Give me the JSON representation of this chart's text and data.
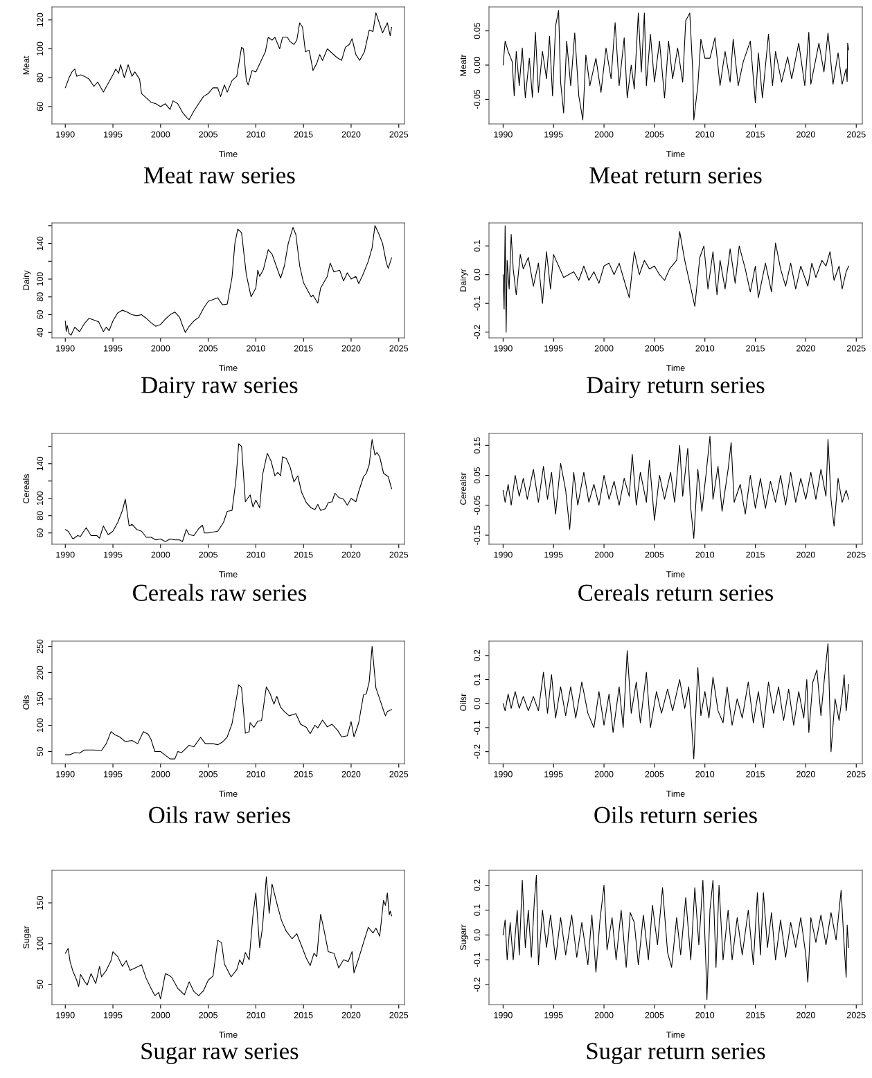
{
  "chart_data": [
    {
      "type": "line",
      "title": "Meat raw series",
      "xlabel": "Time",
      "ylabel": "Meat",
      "color": "#000000",
      "xlim": [
        1988.6,
        2025.6
      ],
      "ylim": [
        48,
        129
      ],
      "xticks": [
        1990,
        1995,
        2000,
        2005,
        2010,
        2015,
        2020,
        2025
      ],
      "yticks": [
        60,
        80,
        100,
        120
      ],
      "x": [
        1990,
        1990.4,
        1990.7,
        1991,
        1991.2,
        1991.6,
        1992,
        1992.5,
        1993,
        1993.4,
        1994,
        1994.5,
        1995,
        1995.3,
        1995.6,
        1995.8,
        1996.2,
        1996.6,
        1997,
        1997.3,
        1997.8,
        1998,
        1998.5,
        1999,
        1999.5,
        2000,
        2000.5,
        2001,
        2001.3,
        2001.8,
        2002.3,
        2002.8,
        2003,
        2003.5,
        2004,
        2004.5,
        2005,
        2005.5,
        2006,
        2006.3,
        2006.7,
        2007,
        2007.5,
        2008,
        2008.5,
        2008.7,
        2009,
        2009.2,
        2009.6,
        2010,
        2010.5,
        2011,
        2011.3,
        2011.7,
        2012,
        2012.5,
        2012.8,
        2013.3,
        2013.6,
        2014,
        2014.3,
        2014.6,
        2014.9,
        2015.2,
        2015.6,
        2016,
        2016.4,
        2016.7,
        2017,
        2017.5,
        2018,
        2018.5,
        2019,
        2019.4,
        2019.8,
        2020.1,
        2020.5,
        2020.9,
        2021.4,
        2021.9,
        2022.3,
        2022.6,
        2023,
        2023.3,
        2023.8,
        2024,
        2024.1,
        2024.25
      ],
      "values": [
        73,
        80,
        84,
        86,
        81,
        82,
        81,
        79,
        74,
        77,
        70,
        76,
        82,
        86,
        83,
        89,
        80,
        89,
        81,
        84,
        79,
        69,
        66,
        63,
        62,
        60,
        62,
        58,
        64,
        62,
        56,
        52,
        51,
        57,
        62,
        67,
        69,
        73,
        73,
        67,
        75,
        70,
        78,
        81,
        101,
        100,
        78,
        75,
        85,
        84,
        91,
        98,
        108,
        106,
        108,
        100,
        108,
        108,
        105,
        103,
        106,
        118,
        115,
        98,
        99,
        85,
        90,
        96,
        92,
        100,
        97,
        94,
        92,
        101,
        103,
        107,
        96,
        92,
        98,
        113,
        112,
        125,
        117,
        111,
        118,
        112,
        109,
        115
      ]
    },
    {
      "type": "line",
      "title": "Meat return series",
      "xlabel": "Time",
      "ylabel": "Meatr",
      "color": "#000000",
      "xlim": [
        1988.6,
        2025.6
      ],
      "ylim": [
        -0.086,
        0.085
      ],
      "xticks": [
        1990,
        1995,
        2000,
        2005,
        2010,
        2015,
        2020,
        2025
      ],
      "yticks": [
        {
          "value": -0.05,
          "label": "-0.05"
        },
        {
          "value": 0,
          "label": "0.00"
        },
        {
          "value": 0.05,
          "label": "0.05"
        }
      ],
      "x": [
        1990,
        1990.2,
        1990.5,
        1990.9,
        1991.1,
        1991.3,
        1991.6,
        1991.9,
        1992.2,
        1992.6,
        1992.9,
        1993.2,
        1993.5,
        1993.9,
        1994.3,
        1994.6,
        1994.9,
        1995.2,
        1995.5,
        1995.7,
        1996,
        1996.3,
        1996.7,
        1997.1,
        1997.5,
        1997.9,
        1998.2,
        1998.6,
        1999.2,
        1999.7,
        2000.2,
        2000.7,
        2001.1,
        2001.5,
        2002,
        2002.3,
        2002.7,
        2003,
        2003.4,
        2003.7,
        2004,
        2004.2,
        2004.6,
        2005,
        2005.5,
        2006,
        2006.4,
        2006.8,
        2007.3,
        2007.8,
        2008.1,
        2008.5,
        2008.8,
        2008.9,
        2009.3,
        2009.6,
        2010,
        2010.5,
        2011,
        2011.5,
        2012,
        2012.5,
        2012.8,
        2013.3,
        2013.8,
        2014.5,
        2015,
        2015.3,
        2015.7,
        2016.3,
        2016.7,
        2017,
        2017.6,
        2018.2,
        2018.6,
        2019.3,
        2019.9,
        2020.3,
        2020.5,
        2021.3,
        2021.8,
        2022.2,
        2022.7,
        2023.2,
        2023.6,
        2024,
        2024.1,
        2024.15,
        2024.25
      ],
      "values": [
        0,
        0.035,
        0.02,
        0.005,
        -0.045,
        0.02,
        -0.03,
        0.025,
        -0.048,
        0.01,
        -0.047,
        0.048,
        -0.04,
        0.02,
        -0.02,
        0.042,
        -0.045,
        0.057,
        0.08,
        -0.025,
        -0.07,
        0.035,
        -0.03,
        0.047,
        -0.045,
        -0.08,
        0.015,
        -0.03,
        0.01,
        -0.04,
        0.025,
        -0.02,
        0.062,
        -0.03,
        0.04,
        -0.048,
        0,
        -0.035,
        0.076,
        -0.01,
        0.076,
        -0.03,
        0.045,
        -0.025,
        0.035,
        -0.048,
        0.035,
        -0.02,
        0.025,
        -0.025,
        0.065,
        0.076,
        -0.01,
        -0.08,
        -0.03,
        0.038,
        0.01,
        0.01,
        0.04,
        -0.03,
        0.02,
        -0.025,
        0.038,
        -0.03,
        0.005,
        0.035,
        -0.055,
        0.018,
        -0.048,
        0.045,
        -0.03,
        0.02,
        -0.025,
        0.012,
        -0.02,
        0.032,
        -0.03,
        0.048,
        -0.028,
        0.032,
        -0.01,
        0.047,
        -0.028,
        0.018,
        -0.028,
        -0.005,
        -0.024,
        0.032,
        0.022
      ]
    },
    {
      "type": "line",
      "title": "Dairy raw series",
      "xlabel": "Time",
      "ylabel": "Dairy",
      "color": "#000000",
      "xlim": [
        1988.6,
        2025.6
      ],
      "ylim": [
        34,
        163
      ],
      "xticks": [
        1990,
        1995,
        2000,
        2005,
        2010,
        2015,
        2020,
        2025
      ],
      "yticks": [
        40,
        60,
        80,
        100,
        {
          "value": 120,
          "label": null
        },
        140,
        {
          "value": 160,
          "label": null
        }
      ],
      "x": [
        1990,
        1990.1,
        1990.2,
        1990.4,
        1990.6,
        1991,
        1991.5,
        1992,
        1992.5,
        1993,
        1993.5,
        1994,
        1994.3,
        1994.6,
        1995,
        1995.5,
        1996,
        1996.5,
        1997,
        1997.5,
        1998,
        1998.5,
        1999,
        1999.5,
        2000,
        2000.5,
        2001,
        2001.5,
        2002,
        2002.3,
        2002.6,
        2003,
        2003.5,
        2004,
        2004.5,
        2005,
        2005.5,
        2006,
        2006.5,
        2007,
        2007.5,
        2007.8,
        2008.1,
        2008.5,
        2009,
        2009.5,
        2010,
        2010.2,
        2010.4,
        2010.8,
        2011.3,
        2011.7,
        2012.3,
        2012.6,
        2013,
        2013.4,
        2013.9,
        2014.2,
        2014.6,
        2015,
        2015.4,
        2015.8,
        2016,
        2016.5,
        2016.8,
        2017.5,
        2017.8,
        2018.2,
        2018.8,
        2019.2,
        2019.6,
        2020,
        2020.5,
        2020.8,
        2021.2,
        2021.8,
        2022.2,
        2022.5,
        2022.9,
        2023.3,
        2023.7,
        2023.9,
        2024.25
      ],
      "values": [
        53,
        41,
        48,
        39,
        37,
        46,
        41,
        50,
        56,
        54,
        52,
        41,
        46,
        42,
        53,
        62,
        65,
        63,
        60,
        59,
        60,
        56,
        51,
        47,
        49,
        55,
        60,
        63,
        57,
        48,
        40,
        47,
        53,
        57,
        67,
        75,
        77,
        79,
        71,
        72,
        102,
        140,
        156,
        152,
        105,
        80,
        90,
        110,
        103,
        111,
        133,
        128,
        110,
        101,
        115,
        140,
        158,
        150,
        115,
        96,
        88,
        80,
        82,
        73,
        90,
        103,
        118,
        108,
        110,
        98,
        107,
        100,
        103,
        95,
        104,
        120,
        135,
        160,
        151,
        140,
        118,
        112,
        124
      ]
    },
    {
      "type": "line",
      "title": "Dairy return series",
      "xlabel": "Time",
      "ylabel": "Dairyr",
      "color": "#000000",
      "xlim": [
        1988.6,
        2025.6
      ],
      "ylim": [
        -0.22,
        0.18
      ],
      "xticks": [
        1990,
        1995,
        2000,
        2005,
        2010,
        2015,
        2020,
        2025
      ],
      "yticks": [
        -0.2,
        -0.1,
        {
          "value": 0,
          "label": "0.0"
        },
        0.1
      ],
      "x": [
        1990,
        1990.1,
        1990.2,
        1990.3,
        1990.4,
        1990.6,
        1990.8,
        1991,
        1991.3,
        1991.7,
        1992,
        1992.5,
        1993,
        1993.5,
        1993.9,
        1994.3,
        1994.7,
        1995,
        1995.5,
        1996,
        1997,
        1997.5,
        1998,
        1998.5,
        1999,
        1999.5,
        2000,
        2000.5,
        2001,
        2001.5,
        2002,
        2002.5,
        2003,
        2003.5,
        2004,
        2004.5,
        2005,
        2005.5,
        2006,
        2006.5,
        2007.2,
        2007.5,
        2008,
        2008.5,
        2009,
        2009.5,
        2009.9,
        2010.3,
        2010.8,
        2011.2,
        2011.5,
        2012,
        2012.5,
        2013,
        2013.4,
        2014,
        2014.5,
        2015,
        2015.3,
        2016,
        2016.6,
        2017,
        2017.5,
        2018,
        2018.5,
        2019,
        2019.5,
        2020.2,
        2020.6,
        2021,
        2021.6,
        2022,
        2022.4,
        2022.8,
        2023.3,
        2023.6,
        2024,
        2024.25
      ],
      "values": [
        0,
        -0.12,
        0.17,
        -0.2,
        0.05,
        -0.05,
        0.14,
        0.02,
        -0.07,
        0.07,
        0.02,
        0.06,
        -0.04,
        0.04,
        -0.1,
        0.08,
        -0.05,
        0.07,
        0.03,
        -0.01,
        0.01,
        -0.02,
        0.03,
        -0.02,
        0.01,
        -0.03,
        0.03,
        0.04,
        0,
        0.04,
        -0.02,
        -0.08,
        0.08,
        0,
        0.05,
        0.02,
        0.03,
        0,
        -0.02,
        0.02,
        0.05,
        0.15,
        0.05,
        -0.03,
        -0.11,
        0.06,
        0.1,
        -0.05,
        0.08,
        -0.07,
        0.05,
        -0.05,
        0.09,
        -0.03,
        0.1,
        0.02,
        -0.06,
        0.03,
        -0.08,
        0.04,
        -0.06,
        0.11,
        0.02,
        -0.04,
        0.04,
        -0.05,
        0.03,
        -0.04,
        0.04,
        -0.01,
        0.05,
        0.03,
        0.08,
        -0.02,
        0.03,
        -0.05,
        0.01,
        0.03
      ]
    },
    {
      "type": "line",
      "title": "Cereals raw series",
      "xlabel": "Time",
      "ylabel": "Cereals",
      "color": "#000000",
      "xlim": [
        1988.6,
        2025.6
      ],
      "ylim": [
        47,
        175
      ],
      "xticks": [
        1990,
        1995,
        2000,
        2005,
        2010,
        2015,
        2020,
        2025
      ],
      "yticks": [
        60,
        80,
        100,
        {
          "value": 120,
          "label": null
        },
        140,
        {
          "value": 160,
          "label": null
        }
      ],
      "x": [
        1990,
        1990.3,
        1990.8,
        1991.3,
        1991.6,
        1992,
        1992.2,
        1992.7,
        1993.3,
        1993.6,
        1994,
        1994.5,
        1995,
        1995.5,
        1996,
        1996.3,
        1996.7,
        1997,
        1997.5,
        1998,
        1998.5,
        1999,
        1999.5,
        2000,
        2000.5,
        2001,
        2001.5,
        2002,
        2002.3,
        2002.7,
        2003,
        2003.5,
        2004,
        2004.4,
        2004.6,
        2005,
        2005.5,
        2006,
        2006.6,
        2007,
        2007.5,
        2007.9,
        2008.2,
        2008.5,
        2008.9,
        2009.4,
        2009.7,
        2010,
        2010.4,
        2010.7,
        2011.2,
        2011.6,
        2012,
        2012.3,
        2012.6,
        2012.8,
        2013.2,
        2013.6,
        2014,
        2014.4,
        2014.8,
        2015.3,
        2015.8,
        2016.2,
        2016.5,
        2016.8,
        2017.3,
        2017.6,
        2018,
        2018.3,
        2018.7,
        2019.2,
        2019.6,
        2020,
        2020.5,
        2020.8,
        2021.3,
        2021.6,
        2021.9,
        2022.2,
        2022.5,
        2022.7,
        2023,
        2023.4,
        2023.9,
        2024.25
      ],
      "values": [
        64,
        62,
        53,
        57,
        56,
        63,
        66,
        57,
        57,
        54,
        68,
        58,
        62,
        72,
        86,
        99,
        68,
        70,
        64,
        62,
        55,
        55,
        52,
        53,
        50,
        53,
        52,
        52,
        50,
        64,
        58,
        57,
        65,
        69,
        60,
        60,
        61,
        62,
        72,
        85,
        86,
        120,
        163,
        160,
        96,
        104,
        90,
        98,
        89,
        127,
        152,
        143,
        126,
        130,
        126,
        148,
        146,
        136,
        119,
        126,
        107,
        95,
        89,
        87,
        93,
        86,
        88,
        95,
        96,
        106,
        101,
        99,
        92,
        100,
        96,
        108,
        125,
        129,
        139,
        168,
        150,
        153,
        148,
        129,
        125,
        111
      ]
    },
    {
      "type": "line",
      "title": "Cereals return series",
      "xlabel": "Time",
      "ylabel": "Cerealsr",
      "color": "#000000",
      "xlim": [
        1988.6,
        2025.6
      ],
      "ylim": [
        -0.18,
        0.19
      ],
      "xticks": [
        1990,
        1995,
        2000,
        2005,
        2010,
        2015,
        2020,
        2025
      ],
      "yticks": [
        -0.15,
        -0.05,
        0.05,
        0.15
      ],
      "x": [
        1990,
        1990.2,
        1990.5,
        1990.8,
        1991.2,
        1991.6,
        1992,
        1992.4,
        1993,
        1993.5,
        1994,
        1994.4,
        1994.8,
        1995.2,
        1995.7,
        1996.2,
        1996.6,
        1997,
        1997.4,
        1998,
        1998.5,
        1999,
        1999.5,
        2000,
        2000.5,
        2001,
        2001.5,
        2002,
        2002.5,
        2002.8,
        2003.2,
        2003.6,
        2004.2,
        2004.5,
        2005,
        2005.5,
        2006,
        2006.6,
        2007,
        2007.5,
        2007.8,
        2008.3,
        2008.6,
        2008.9,
        2009.3,
        2009.7,
        2010.1,
        2010.5,
        2010.8,
        2011.3,
        2011.7,
        2012.3,
        2012.6,
        2012.9,
        2013.5,
        2014,
        2014.5,
        2015,
        2015.5,
        2016,
        2016.5,
        2017,
        2017.5,
        2018,
        2018.5,
        2019,
        2019.5,
        2020,
        2020.5,
        2021,
        2021.5,
        2022,
        2022.2,
        2022.5,
        2022.8,
        2023.2,
        2023.6,
        2024,
        2024.25
      ],
      "values": [
        0,
        -0.04,
        0.02,
        -0.05,
        0.05,
        -0.02,
        0.04,
        -0.03,
        0.07,
        -0.04,
        0.08,
        -0.03,
        0.06,
        -0.08,
        0.09,
        0,
        -0.13,
        0.06,
        -0.05,
        0.06,
        -0.04,
        0.02,
        -0.05,
        0.05,
        -0.03,
        0.03,
        -0.05,
        0.04,
        -0.02,
        0.12,
        -0.05,
        0.06,
        -0.04,
        0.1,
        -0.1,
        0.05,
        -0.03,
        0.06,
        -0.04,
        0.15,
        -0.02,
        0.14,
        -0.06,
        -0.16,
        0.07,
        -0.07,
        0.05,
        0.18,
        -0.03,
        0.08,
        -0.07,
        0.07,
        0.16,
        -0.04,
        0.02,
        -0.08,
        0.05,
        -0.06,
        0.04,
        -0.06,
        0.03,
        -0.04,
        0.05,
        -0.05,
        0.06,
        -0.04,
        0.04,
        -0.03,
        0.06,
        -0.03,
        0.07,
        -0.02,
        0.17,
        -0.03,
        -0.12,
        0.04,
        -0.04,
        0,
        -0.03
      ]
    },
    {
      "type": "line",
      "title": "Oils raw series",
      "xlabel": "Time",
      "ylabel": "Oils",
      "color": "#000000",
      "xlim": [
        1988.6,
        2025.6
      ],
      "ylim": [
        27,
        260
      ],
      "xticks": [
        1990,
        1995,
        2000,
        2005,
        2010,
        2015,
        2020,
        2025
      ],
      "yticks": [
        50,
        100,
        150,
        200,
        250
      ],
      "x": [
        1990,
        1990.5,
        1991,
        1991.5,
        1992,
        1993,
        1993.8,
        1994.3,
        1994.8,
        1995.2,
        1995.7,
        1996.3,
        1997,
        1997.6,
        1998.2,
        1998.7,
        1999,
        1999.4,
        2000,
        2000.5,
        2001,
        2001.5,
        2001.8,
        2002.2,
        2003,
        2003.5,
        2004.2,
        2004.7,
        2005.5,
        2006,
        2006.5,
        2007,
        2007.5,
        2008,
        2008.2,
        2008.5,
        2008.9,
        2009.3,
        2009.4,
        2009.8,
        2010.2,
        2010.6,
        2011.1,
        2011.5,
        2011.9,
        2012.2,
        2012.6,
        2013,
        2013.5,
        2014.2,
        2014.7,
        2015.3,
        2015.7,
        2016.2,
        2016.5,
        2017,
        2017.5,
        2018,
        2018.6,
        2019,
        2019.6,
        2020,
        2020.3,
        2020.8,
        2021.3,
        2021.6,
        2021.9,
        2022.2,
        2022.6,
        2023,
        2023.4,
        2023.6,
        2023.8,
        2024.25
      ],
      "values": [
        44,
        44,
        48,
        47,
        53,
        53,
        52,
        65,
        88,
        82,
        78,
        69,
        71,
        65,
        88,
        83,
        73,
        50,
        50,
        43,
        36,
        36,
        50,
        48,
        62,
        59,
        77,
        65,
        65,
        63,
        68,
        78,
        103,
        155,
        177,
        172,
        85,
        88,
        105,
        96,
        108,
        109,
        173,
        160,
        140,
        155,
        134,
        126,
        118,
        122,
        102,
        96,
        84,
        100,
        95,
        110,
        97,
        102,
        90,
        78,
        80,
        107,
        78,
        105,
        158,
        160,
        183,
        250,
        171,
        150,
        128,
        118,
        126,
        130
      ]
    },
    {
      "type": "line",
      "title": "Oils return series",
      "xlabel": "Time",
      "ylabel": "Oilsr",
      "color": "#000000",
      "xlim": [
        1988.6,
        2025.6
      ],
      "ylim": [
        -0.25,
        0.26
      ],
      "xticks": [
        1990,
        1995,
        2000,
        2005,
        2010,
        2015,
        2020,
        2025
      ],
      "yticks": [
        -0.2,
        -0.1,
        {
          "value": 0,
          "label": "0.0"
        },
        0.1,
        0.2
      ],
      "x": [
        1990,
        1990.2,
        1990.5,
        1990.8,
        1991.2,
        1991.6,
        1992,
        1992.5,
        1993,
        1993.5,
        1994,
        1994.4,
        1994.8,
        1995.2,
        1995.7,
        1996.2,
        1996.7,
        1997.2,
        1997.8,
        1998.4,
        1999,
        1999.5,
        2000,
        2000.5,
        2000.9,
        2001.5,
        2001.9,
        2002.3,
        2002.7,
        2003.2,
        2003.6,
        2004.2,
        2004.6,
        2005.2,
        2005.7,
        2006.3,
        2006.8,
        2007.5,
        2008,
        2008.4,
        2008.7,
        2008.9,
        2009.3,
        2009.6,
        2010,
        2010.4,
        2010.8,
        2011.3,
        2011.8,
        2012.2,
        2012.7,
        2013.2,
        2013.7,
        2014.3,
        2014.8,
        2015.3,
        2015.8,
        2016.3,
        2016.8,
        2017.3,
        2017.8,
        2018.3,
        2018.8,
        2019.3,
        2019.8,
        2020.1,
        2020.3,
        2020.7,
        2021.1,
        2021.5,
        2021.9,
        2022.2,
        2022.5,
        2022.9,
        2023.3,
        2023.6,
        2023.8,
        2024,
        2024.25
      ],
      "values": [
        0,
        -0.03,
        0.04,
        -0.02,
        0.05,
        -0.02,
        0.03,
        -0.03,
        0.03,
        -0.03,
        0.13,
        -0.04,
        0.12,
        -0.06,
        0.07,
        -0.05,
        0.07,
        -0.06,
        0.09,
        -0.04,
        -0.1,
        0.05,
        -0.09,
        0.04,
        -0.12,
        0.07,
        -0.1,
        0.22,
        -0.04,
        0.09,
        -0.08,
        0.13,
        -0.1,
        0.05,
        -0.04,
        0.06,
        -0.03,
        0.1,
        -0.02,
        0.07,
        -0.1,
        -0.23,
        0.15,
        -0.05,
        0.05,
        -0.06,
        0.11,
        -0.03,
        -0.08,
        0.07,
        -0.09,
        0.02,
        -0.06,
        0.09,
        -0.08,
        0.05,
        -0.1,
        0.09,
        -0.04,
        0.07,
        -0.07,
        0.06,
        -0.09,
        0.05,
        -0.06,
        0.1,
        -0.12,
        0.09,
        0.14,
        -0.05,
        0.13,
        0.25,
        -0.2,
        0.02,
        -0.07,
        0.03,
        0.12,
        -0.03,
        0.08
      ]
    },
    {
      "type": "line",
      "title": "Sugar raw series",
      "xlabel": "Time",
      "ylabel": "Sugar",
      "color": "#000000",
      "xlim": [
        1988.6,
        2025.6
      ],
      "ylim": [
        25,
        190
      ],
      "xticks": [
        1990,
        1995,
        2000,
        2005,
        2010,
        2015,
        2020,
        2025
      ],
      "yticks": [
        50,
        100,
        150
      ],
      "x": [
        1990,
        1990.3,
        1990.5,
        1990.8,
        1991.2,
        1991.4,
        1991.6,
        1992,
        1992.3,
        1992.7,
        1993.2,
        1993.6,
        1993.8,
        1994.3,
        1994.8,
        1995,
        1995.5,
        1996,
        1996.4,
        1996.8,
        1997.5,
        1998,
        1998.5,
        1999,
        1999.4,
        1999.8,
        2000,
        2000.5,
        2000.9,
        2001.2,
        2001.8,
        2002.5,
        2003,
        2003.5,
        2004,
        2004.5,
        2005,
        2005.5,
        2006,
        2006.4,
        2006.7,
        2007.4,
        2008,
        2008.3,
        2008.6,
        2008.9,
        2009.3,
        2009.7,
        2010,
        2010.4,
        2010.7,
        2011.1,
        2011.4,
        2011.7,
        2012.3,
        2012.7,
        2013.2,
        2013.8,
        2014.3,
        2014.7,
        2015.3,
        2015.7,
        2016.1,
        2016.4,
        2016.8,
        2017.2,
        2017.6,
        2018.2,
        2018.7,
        2019.2,
        2019.7,
        2020.1,
        2020.3,
        2020.8,
        2021.4,
        2021.8,
        2022.3,
        2022.6,
        2023,
        2023.4,
        2023.6,
        2023.8,
        2024,
        2024.1,
        2024.25
      ],
      "values": [
        88,
        94,
        78,
        66,
        55,
        47,
        62,
        54,
        49,
        63,
        51,
        72,
        59,
        67,
        79,
        90,
        84,
        72,
        79,
        67,
        71,
        74,
        57,
        45,
        36,
        40,
        32,
        63,
        61,
        58,
        45,
        37,
        53,
        41,
        36,
        42,
        55,
        60,
        104,
        101,
        75,
        59,
        68,
        80,
        74,
        89,
        80,
        135,
        162,
        95,
        120,
        182,
        137,
        173,
        145,
        128,
        115,
        106,
        112,
        100,
        82,
        73,
        88,
        84,
        136,
        114,
        90,
        88,
        70,
        80,
        78,
        90,
        64,
        82,
        105,
        120,
        113,
        119,
        109,
        153,
        147,
        162,
        135,
        140,
        134
      ]
    },
    {
      "type": "line",
      "title": "Sugar return series",
      "xlabel": "Time",
      "ylabel": "Sugarr",
      "color": "#000000",
      "xlim": [
        1988.6,
        2025.6
      ],
      "ylim": [
        -0.28,
        0.26
      ],
      "xticks": [
        1990,
        1995,
        2000,
        2005,
        2010,
        2015,
        2020,
        2025
      ],
      "yticks": [
        -0.2,
        -0.1,
        {
          "value": 0,
          "label": "0.0"
        },
        0.1,
        0.2
      ],
      "x": [
        1990,
        1990.2,
        1990.4,
        1990.7,
        1991,
        1991.4,
        1991.6,
        1991.9,
        1992.2,
        1992.5,
        1992.8,
        1993.1,
        1993.3,
        1993.5,
        1993.9,
        1994.3,
        1994.7,
        1995.2,
        1995.7,
        1996.2,
        1996.8,
        1997.3,
        1997.8,
        1998.4,
        1998.8,
        1999.2,
        1999.6,
        2000,
        2000.3,
        2000.8,
        2001.2,
        2001.7,
        2002.2,
        2002.6,
        2003,
        2003.4,
        2003.9,
        2004.4,
        2004.8,
        2005.3,
        2005.8,
        2006.3,
        2006.7,
        2007.2,
        2007.6,
        2008.1,
        2008.6,
        2009,
        2009.4,
        2009.8,
        2010.1,
        2010.2,
        2010.5,
        2010.8,
        2011.1,
        2011.4,
        2011.8,
        2012.3,
        2012.7,
        2013.2,
        2013.7,
        2014.3,
        2014.8,
        2015.2,
        2015.5,
        2015.8,
        2016.2,
        2016.6,
        2017,
        2017.5,
        2018,
        2018.5,
        2019,
        2019.5,
        2020,
        2020.2,
        2020.5,
        2021,
        2021.5,
        2022,
        2022.5,
        2023,
        2023.5,
        2023.8,
        2024,
        2024.1,
        2024.25
      ],
      "values": [
        0,
        0.06,
        -0.1,
        0.05,
        -0.1,
        0.1,
        -0.08,
        0.22,
        -0.05,
        0.1,
        -0.09,
        0.14,
        0.24,
        -0.12,
        0.1,
        -0.05,
        0.08,
        -0.1,
        0.07,
        -0.08,
        0.08,
        -0.09,
        0.05,
        -0.12,
        0.08,
        -0.15,
        0.06,
        0.2,
        -0.06,
        0.07,
        -0.1,
        0.1,
        -0.13,
        0.09,
        0.05,
        -0.12,
        0.08,
        -0.1,
        0.12,
        -0.04,
        0.19,
        -0.07,
        -0.13,
        0.07,
        -0.08,
        0.15,
        -0.1,
        0.19,
        -0.04,
        0.22,
        -0.12,
        -0.26,
        0.1,
        0.22,
        -0.13,
        0.2,
        -0.1,
        0.1,
        -0.1,
        0.07,
        -0.08,
        0.1,
        -0.12,
        0.17,
        -0.08,
        0.17,
        -0.05,
        0.09,
        -0.1,
        0.06,
        -0.09,
        0.05,
        -0.05,
        0.07,
        -0.08,
        -0.19,
        0.07,
        -0.03,
        0.08,
        -0.04,
        0.09,
        -0.02,
        0.18,
        -0.04,
        -0.17,
        0.04,
        -0.05
      ]
    }
  ]
}
